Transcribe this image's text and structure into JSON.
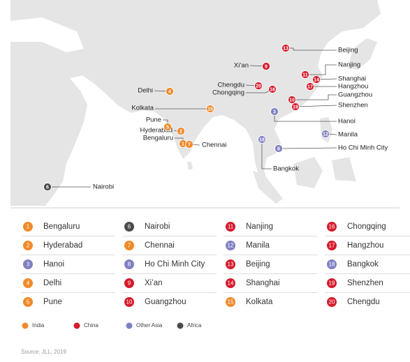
{
  "cities": [
    {
      "rank": 1,
      "name": "Bengaluru",
      "region": 0
    },
    {
      "rank": 2,
      "name": "Hyderabad",
      "region": 0
    },
    {
      "rank": 3,
      "name": "Hanoi",
      "region": 2
    },
    {
      "rank": 4,
      "name": "Delhi",
      "region": 0
    },
    {
      "rank": 5,
      "name": "Pune",
      "region": 0
    },
    {
      "rank": 6,
      "name": "Nairobi",
      "region": 3
    },
    {
      "rank": 7,
      "name": "Chennai",
      "region": 0
    },
    {
      "rank": 8,
      "name": "Ho Chi Minh City",
      "region": 2
    },
    {
      "rank": 9,
      "name": "Xi’an",
      "region": 1
    },
    {
      "rank": 10,
      "name": "Guangzhou",
      "region": 1
    },
    {
      "rank": 11,
      "name": "Nanjing",
      "region": 1
    },
    {
      "rank": 12,
      "name": "Manila",
      "region": 2
    },
    {
      "rank": 13,
      "name": "Beijing",
      "region": 1
    },
    {
      "rank": 14,
      "name": "Shanghai",
      "region": 1
    },
    {
      "rank": 15,
      "name": "Kolkata",
      "region": 0
    },
    {
      "rank": 16,
      "name": "Chongqing",
      "region": 1
    },
    {
      "rank": 17,
      "name": "Hangzhou",
      "region": 1
    },
    {
      "rank": 18,
      "name": "Bangkok",
      "region": 2
    },
    {
      "rank": 19,
      "name": "Shenzhen",
      "region": 1
    },
    {
      "rank": 20,
      "name": "Chengdu",
      "region": 1
    }
  ],
  "regions": [
    {
      "name": "India",
      "color": "#ef8a2b"
    },
    {
      "name": "China",
      "color": "#d51b2c"
    },
    {
      "name": "Other Asia",
      "color": "#7f80c2"
    },
    {
      "name": "Africa",
      "color": "#4b4b4d"
    }
  ],
  "source": "Source: JLL, 2019"
}
